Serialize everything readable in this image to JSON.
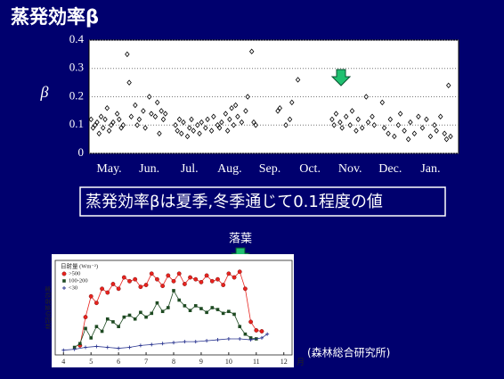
{
  "slide": {
    "title": "蒸発効率β",
    "annotation": "落葉",
    "summary": "蒸発効率βは夏季,冬季通じて0.1程度の値",
    "annotation2": "落葉",
    "caption": "(森林総合研究所)"
  },
  "chart_data": [
    {
      "type": "scatter",
      "ylabel": "β",
      "xlim": [
        0,
        9.2
      ],
      "ylim": [
        0,
        0.4
      ],
      "xticks": [
        {
          "value": 0.5,
          "label": "May."
        },
        {
          "value": 1.5,
          "label": "Jun."
        },
        {
          "value": 2.5,
          "label": "Jul."
        },
        {
          "value": 3.5,
          "label": "Aug."
        },
        {
          "value": 4.5,
          "label": "Sep."
        },
        {
          "value": 5.5,
          "label": "Oct."
        },
        {
          "value": 6.5,
          "label": "Nov."
        },
        {
          "value": 7.5,
          "label": "Dec."
        },
        {
          "value": 8.5,
          "label": "Jan."
        }
      ],
      "yticks": [
        0,
        0.1,
        0.2,
        0.3,
        0.4
      ],
      "grid": true,
      "color": "#000000",
      "x": [
        0.05,
        0.1,
        0.15,
        0.2,
        0.25,
        0.3,
        0.35,
        0.4,
        0.45,
        0.5,
        0.55,
        0.6,
        0.7,
        0.75,
        0.8,
        0.85,
        0.95,
        1.0,
        1.05,
        1.15,
        1.2,
        1.25,
        1.35,
        1.4,
        1.5,
        1.55,
        1.65,
        1.7,
        1.75,
        1.8,
        1.85,
        1.9,
        2.15,
        2.2,
        2.25,
        2.3,
        2.35,
        2.45,
        2.5,
        2.55,
        2.6,
        2.7,
        2.75,
        2.8,
        2.9,
        2.95,
        3.05,
        3.1,
        3.2,
        3.25,
        3.3,
        3.4,
        3.45,
        3.5,
        3.55,
        3.6,
        3.65,
        3.7,
        3.8,
        3.9,
        3.95,
        4.05,
        4.1,
        4.15,
        4.7,
        4.75,
        4.9,
        5.0,
        5.05,
        5.2,
        6.05,
        6.1,
        6.15,
        6.25,
        6.3,
        6.4,
        6.5,
        6.55,
        6.65,
        6.7,
        6.8,
        6.9,
        6.95,
        7.05,
        7.1,
        7.3,
        7.35,
        7.45,
        7.5,
        7.6,
        7.7,
        7.75,
        7.85,
        7.95,
        8.0,
        8.1,
        8.2,
        8.3,
        8.4,
        8.5,
        8.6,
        8.65,
        8.75,
        8.85,
        8.9,
        8.95,
        9.0
      ],
      "values": [
        0.12,
        0.09,
        0.1,
        0.11,
        0.07,
        0.13,
        0.09,
        0.12,
        0.16,
        0.08,
        0.1,
        0.11,
        0.14,
        0.12,
        0.09,
        0.1,
        0.35,
        0.25,
        0.13,
        0.17,
        0.1,
        0.12,
        0.15,
        0.09,
        0.2,
        0.14,
        0.13,
        0.18,
        0.07,
        0.15,
        0.12,
        0.14,
        0.1,
        0.08,
        0.12,
        0.07,
        0.11,
        0.06,
        0.09,
        0.12,
        0.08,
        0.1,
        0.07,
        0.11,
        0.09,
        0.12,
        0.08,
        0.13,
        0.1,
        0.09,
        0.11,
        0.14,
        0.08,
        0.12,
        0.16,
        0.1,
        0.17,
        0.13,
        0.11,
        0.15,
        0.2,
        0.36,
        0.11,
        0.1,
        0.15,
        0.16,
        0.1,
        0.12,
        0.18,
        0.26,
        0.12,
        0.1,
        0.14,
        0.11,
        0.09,
        0.13,
        0.1,
        0.15,
        0.08,
        0.12,
        0.09,
        0.2,
        0.11,
        0.13,
        0.1,
        0.18,
        0.09,
        0.07,
        0.12,
        0.06,
        0.1,
        0.14,
        0.08,
        0.05,
        0.11,
        0.07,
        0.13,
        0.09,
        0.12,
        0.06,
        0.1,
        0.08,
        0.13,
        0.07,
        0.05,
        0.24,
        0.06
      ]
    },
    {
      "type": "line",
      "ylabel": "林冠の蒸発効率",
      "xlabel": "月",
      "legend_title": "日射量 (Wm⁻²)",
      "xlim": [
        3.7,
        12.3
      ],
      "ylim": [
        0,
        1
      ],
      "xticks": [
        4,
        5,
        6,
        7,
        8,
        9,
        10,
        11,
        12
      ],
      "series": [
        {
          "name": ">500",
          "color": "#e8231e",
          "marker": "circle",
          "x": [
            4.6,
            4.8,
            5.0,
            5.2,
            5.4,
            5.6,
            5.8,
            6.0,
            6.2,
            6.4,
            6.6,
            6.8,
            7.0,
            7.2,
            7.4,
            7.6,
            7.8,
            8.0,
            8.2,
            8.4,
            8.6,
            8.8,
            9.0,
            9.2,
            9.4,
            9.6,
            9.8,
            10.0,
            10.2,
            10.4,
            10.6,
            10.8,
            11.0,
            11.2
          ],
          "values": [
            0.1,
            0.4,
            0.62,
            0.55,
            0.7,
            0.66,
            0.75,
            0.7,
            0.82,
            0.78,
            0.8,
            0.72,
            0.74,
            0.86,
            0.8,
            0.73,
            0.84,
            0.78,
            0.86,
            0.75,
            0.82,
            0.8,
            0.77,
            0.84,
            0.78,
            0.8,
            0.74,
            0.86,
            0.82,
            0.88,
            0.7,
            0.35,
            0.26,
            0.25
          ]
        },
        {
          "name": "100-200",
          "color": "#1e4a22",
          "marker": "square",
          "x": [
            4.4,
            4.6,
            4.8,
            5.0,
            5.2,
            5.4,
            5.6,
            5.8,
            6.0,
            6.2,
            6.4,
            6.6,
            6.8,
            7.0,
            7.2,
            7.4,
            7.6,
            7.8,
            8.0,
            8.2,
            8.4,
            8.6,
            8.8,
            9.0,
            9.2,
            9.4,
            9.6,
            9.8,
            10.0,
            10.2,
            10.4,
            10.6,
            10.8,
            11.0
          ],
          "values": [
            0.08,
            0.12,
            0.28,
            0.18,
            0.3,
            0.25,
            0.38,
            0.35,
            0.3,
            0.4,
            0.42,
            0.38,
            0.45,
            0.4,
            0.44,
            0.55,
            0.46,
            0.5,
            0.68,
            0.58,
            0.52,
            0.47,
            0.52,
            0.49,
            0.45,
            0.5,
            0.48,
            0.44,
            0.46,
            0.43,
            0.3,
            0.22,
            0.18,
            0.17
          ]
        },
        {
          "name": "<30",
          "color": "#2a3590",
          "marker": "cross",
          "x": [
            4.0,
            4.4,
            4.8,
            5.2,
            5.6,
            6.0,
            6.4,
            6.8,
            7.2,
            7.6,
            8.0,
            8.4,
            8.8,
            9.2,
            9.6,
            10.0,
            10.4,
            10.8,
            11.2,
            11.4
          ],
          "values": [
            0.05,
            0.06,
            0.08,
            0.09,
            0.08,
            0.07,
            0.08,
            0.1,
            0.11,
            0.12,
            0.13,
            0.14,
            0.14,
            0.15,
            0.16,
            0.17,
            0.17,
            0.16,
            0.18,
            0.22
          ]
        }
      ]
    }
  ]
}
